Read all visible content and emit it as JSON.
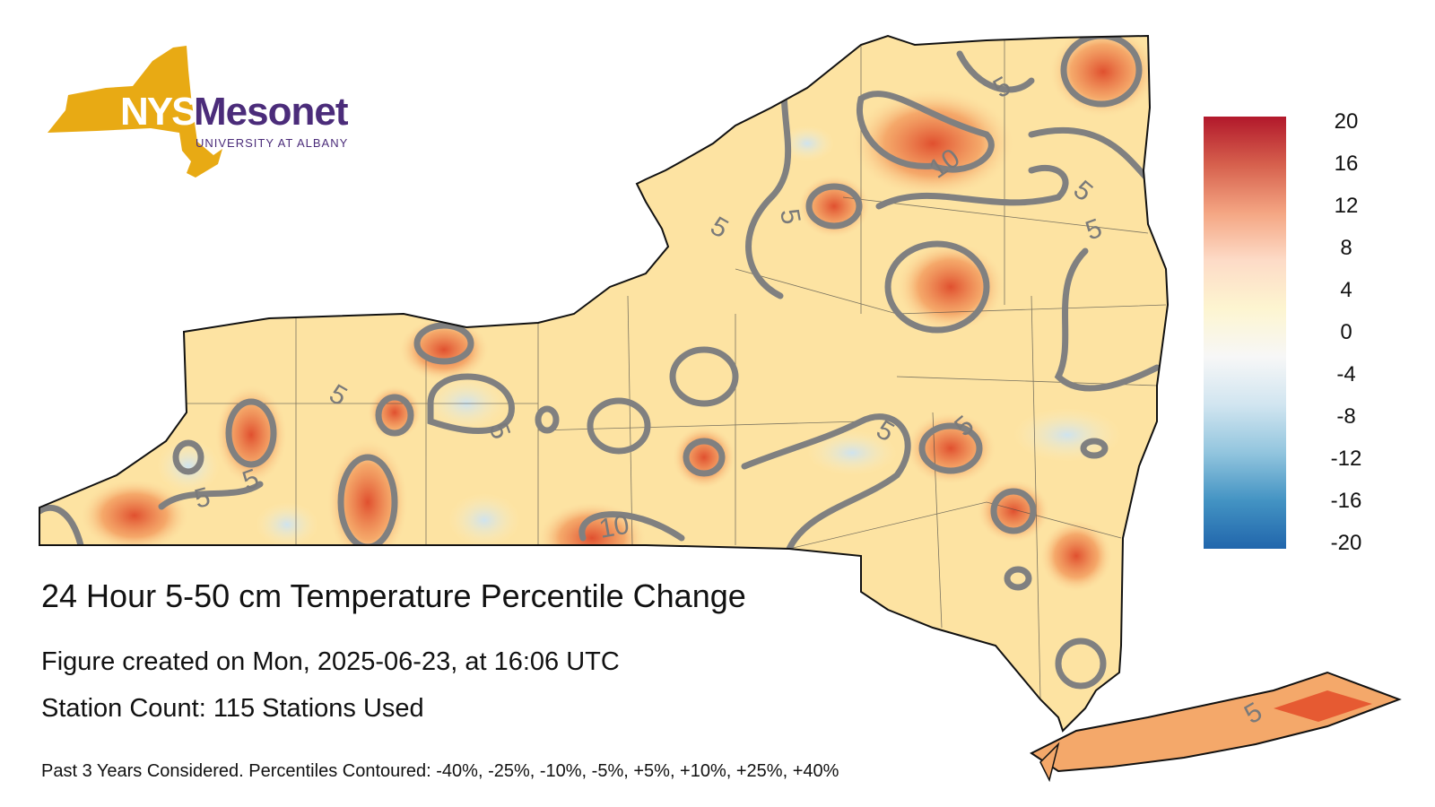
{
  "logo": {
    "nys": "NYS",
    "mesonet": "Mesonet",
    "university": "UNIVERSITY AT ALBANY"
  },
  "title": "24 Hour 5-50 cm Temperature Percentile Change",
  "created": "Figure created on Mon, 2025-06-23, at 16:06 UTC",
  "station_count": "Station Count: 115 Stations Used",
  "footnote": "Past 3 Years Considered. Percentiles Contoured: -40%, -25%, -10%, -5%, +5%, +10%, +25%, +40%",
  "colorbar": {
    "ticks": [
      "20",
      "16",
      "12",
      "8",
      "4",
      "0",
      "-4",
      "-8",
      "-12",
      "-16",
      "-20"
    ],
    "colors": [
      "#b2182b",
      "#d6604d",
      "#f4a582",
      "#fddbc7",
      "#fdf5d0",
      "#f7f7f7",
      "#d1e5f0",
      "#92c5de",
      "#4393c3",
      "#2166ac"
    ]
  },
  "contour_labels": [
    "5",
    "5",
    "5",
    "5",
    "10",
    "5",
    "5",
    "5",
    "5",
    "5",
    "5",
    "10",
    "5",
    "5"
  ],
  "colors": {
    "logo_gold": "#e8aa14",
    "logo_purple": "#4b2c7a",
    "state_fill": "#fde6a8",
    "contour": "#808080"
  }
}
